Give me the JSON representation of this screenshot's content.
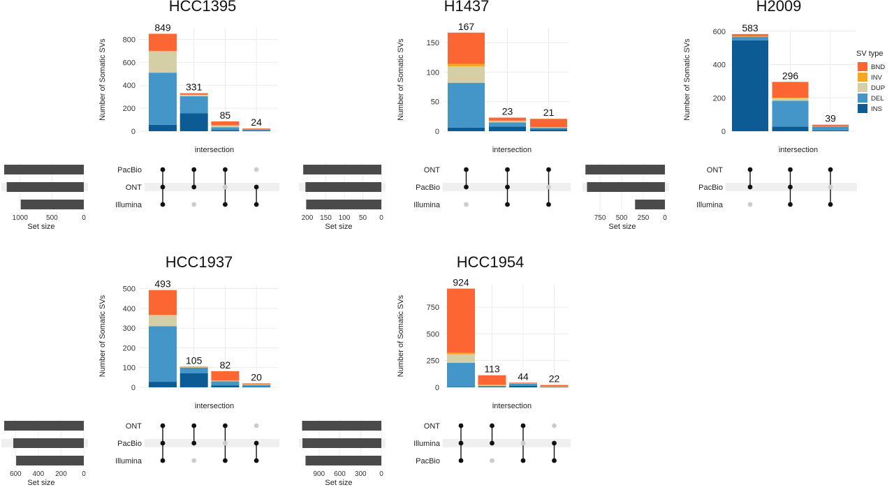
{
  "colors": {
    "BND": "#fc6632",
    "INV": "#f5a623",
    "DUP": "#d6cfa6",
    "DEL": "#4496c8",
    "INS": "#0d5b94",
    "setbar": "#4a4a4a",
    "dot_on": "#111111",
    "dot_off": "#cccccc",
    "grid": "#ececec",
    "stripe": "#efefef"
  },
  "legend": {
    "title": "SV type",
    "items": [
      "BND",
      "INV",
      "DUP",
      "DEL",
      "INS"
    ]
  },
  "chart_data": [
    {
      "type": "bar",
      "title": "HCC1395",
      "ylabel": "Number of Somatic SVs",
      "xlabel": "intersection",
      "ylim": [
        0,
        900
      ],
      "yticks": [
        0,
        200,
        400,
        600,
        800
      ],
      "setsize_label": "Set size",
      "setsize_ticks": [
        1000,
        500,
        0
      ],
      "setsize_max": 1250,
      "sets": [
        "PacBio",
        "ONT",
        "Illumina"
      ],
      "set_sizes": [
        1250,
        1210,
        990
      ],
      "bars": [
        {
          "total": 849,
          "segments": {
            "INS": 55,
            "DEL": 455,
            "DUP": 185,
            "INV": 5,
            "BND": 149
          },
          "members": [
            true,
            true,
            true
          ]
        },
        {
          "total": 331,
          "segments": {
            "INS": 155,
            "DEL": 150,
            "DUP": 10,
            "INV": 4,
            "BND": 12
          },
          "members": [
            true,
            true,
            false
          ]
        },
        {
          "total": 85,
          "segments": {
            "INS": 10,
            "DEL": 25,
            "DUP": 15,
            "INV": 2,
            "BND": 33
          },
          "members": [
            true,
            false,
            true
          ]
        },
        {
          "total": 24,
          "segments": {
            "INS": 5,
            "DEL": 10,
            "DUP": 3,
            "INV": 1,
            "BND": 5
          },
          "members": [
            false,
            true,
            true
          ]
        }
      ]
    },
    {
      "type": "bar",
      "title": "H1437",
      "ylabel": "Number of Somatic SVs",
      "xlabel": "intersection",
      "ylim": [
        0,
        175
      ],
      "yticks": [
        0,
        50,
        100,
        150
      ],
      "setsize_label": "Set size",
      "setsize_ticks": [
        200,
        150,
        100,
        50,
        0
      ],
      "setsize_max": 215,
      "sets": [
        "ONT",
        "PacBio",
        "Illumina"
      ],
      "set_sizes": [
        211,
        205,
        203
      ],
      "bars": [
        {
          "total": 167,
          "segments": {
            "INS": 6,
            "DEL": 76,
            "DUP": 28,
            "INV": 4,
            "BND": 53
          },
          "members": [
            true,
            true,
            false
          ]
        },
        {
          "total": 23,
          "segments": {
            "INS": 8,
            "DEL": 7,
            "DUP": 2,
            "INV": 1,
            "BND": 5
          },
          "members": [
            true,
            true,
            true
          ]
        },
        {
          "total": 21,
          "segments": {
            "INS": 3,
            "DEL": 3,
            "DUP": 1,
            "INV": 0,
            "BND": 14
          },
          "members": [
            true,
            false,
            true
          ]
        }
      ]
    },
    {
      "type": "bar",
      "title": "H2009",
      "ylabel": "Number of Somatic SVs",
      "xlabel": "intersection",
      "ylim": [
        0,
        620
      ],
      "yticks": [
        0,
        200,
        400,
        600
      ],
      "setsize_label": "Set size",
      "setsize_ticks": [
        750,
        500,
        250,
        0
      ],
      "setsize_max": 920,
      "sets": [
        "ONT",
        "PacBio",
        "Illumina"
      ],
      "set_sizes": [
        918,
        900,
        345
      ],
      "bars": [
        {
          "total": 583,
          "segments": {
            "INS": 545,
            "DEL": 22,
            "DUP": 2,
            "INV": 1,
            "BND": 13
          },
          "members": [
            true,
            true,
            false
          ]
        },
        {
          "total": 296,
          "segments": {
            "INS": 28,
            "DEL": 155,
            "DUP": 15,
            "INV": 3,
            "BND": 95
          },
          "members": [
            true,
            true,
            true
          ]
        },
        {
          "total": 39,
          "segments": {
            "INS": 5,
            "DEL": 24,
            "DUP": 1,
            "INV": 0,
            "BND": 9
          },
          "members": [
            true,
            false,
            true
          ]
        }
      ]
    },
    {
      "type": "bar",
      "title": "HCC1937",
      "ylabel": "Number of Somatic SVs",
      "xlabel": "intersection",
      "ylim": [
        0,
        520
      ],
      "yticks": [
        0,
        100,
        200,
        300,
        400,
        500
      ],
      "setsize_label": "Set size",
      "setsize_ticks": [
        600,
        400,
        200,
        0
      ],
      "setsize_max": 700,
      "sets": [
        "ONT",
        "PacBio",
        "Illumina"
      ],
      "set_sizes": [
        700,
        620,
        595
      ],
      "bars": [
        {
          "total": 493,
          "segments": {
            "INS": 28,
            "DEL": 282,
            "DUP": 55,
            "INV": 3,
            "BND": 125
          },
          "members": [
            true,
            true,
            true
          ]
        },
        {
          "total": 105,
          "segments": {
            "INS": 72,
            "DEL": 28,
            "DUP": 2,
            "INV": 1,
            "BND": 2
          },
          "members": [
            true,
            true,
            false
          ]
        },
        {
          "total": 82,
          "segments": {
            "INS": 10,
            "DEL": 20,
            "DUP": 3,
            "INV": 2,
            "BND": 47
          },
          "members": [
            true,
            false,
            true
          ]
        },
        {
          "total": 20,
          "segments": {
            "INS": 3,
            "DEL": 9,
            "DUP": 3,
            "INV": 1,
            "BND": 4
          },
          "members": [
            false,
            true,
            true
          ]
        }
      ]
    },
    {
      "type": "bar",
      "title": "HCC1954",
      "ylabel": "Number of Somatic SVs",
      "xlabel": "intersection",
      "ylim": [
        0,
        960
      ],
      "yticks": [
        0,
        250,
        500,
        750
      ],
      "setsize_label": "Set size",
      "setsize_ticks": [
        900,
        600,
        300,
        0
      ],
      "setsize_max": 1150,
      "sets": [
        "ONT",
        "Illumina",
        "PacBio"
      ],
      "set_sizes": [
        1145,
        1140,
        1095
      ],
      "bars": [
        {
          "total": 924,
          "segments": {
            "INS": 5,
            "DEL": 225,
            "DUP": 80,
            "INV": 12,
            "BND": 602
          },
          "members": [
            true,
            true,
            true
          ]
        },
        {
          "total": 113,
          "segments": {
            "INS": 5,
            "DEL": 8,
            "DUP": 5,
            "INV": 7,
            "BND": 88
          },
          "members": [
            true,
            true,
            false
          ]
        },
        {
          "total": 44,
          "segments": {
            "INS": 15,
            "DEL": 20,
            "DUP": 2,
            "INV": 0,
            "BND": 7
          },
          "members": [
            true,
            false,
            true
          ]
        },
        {
          "total": 22,
          "segments": {
            "INS": 2,
            "DEL": 3,
            "DUP": 2,
            "INV": 1,
            "BND": 14
          },
          "members": [
            false,
            true,
            true
          ]
        }
      ]
    }
  ]
}
